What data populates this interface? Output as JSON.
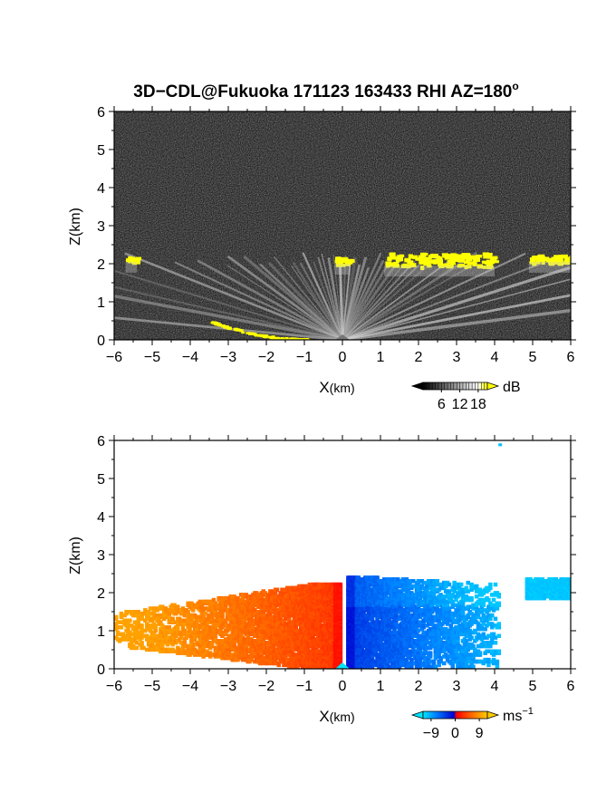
{
  "page_title": "3D−CDL@Fukuoka 171123 163433 RHI AZ=180",
  "title_superscript": "o",
  "chart_data": [
    {
      "type": "heatmap",
      "name": "backscatter-panel",
      "quantity": "dB",
      "xlabel_main": "X",
      "xlabel_unit": "(km)",
      "ylabel": "Z(km)",
      "xlim": [
        -6,
        6
      ],
      "ylim": [
        0,
        6
      ],
      "xticks": [
        -6,
        -5,
        -4,
        -3,
        -2,
        -1,
        0,
        1,
        2,
        3,
        4,
        5,
        6
      ],
      "yticks": [
        0,
        1,
        2,
        3,
        4,
        5,
        6
      ],
      "colorbar": {
        "unit": "dB",
        "tick_labels": [
          "6",
          "12",
          "18"
        ],
        "ticks": [
          6,
          12,
          18
        ],
        "range": [
          0,
          21
        ],
        "colors": [
          "#000000",
          "#ffffff",
          "#ffff00"
        ]
      },
      "features": [
        {
          "kind": "cloud_layer",
          "x_range": [
            1.1,
            4.0
          ],
          "z_range": [
            1.95,
            2.3
          ],
          "level_db": 21
        },
        {
          "kind": "cloud_layer",
          "x_range": [
            4.9,
            6.0
          ],
          "z_range": [
            2.05,
            2.25
          ],
          "level_db": 21
        },
        {
          "kind": "cloud_layer",
          "x_range": [
            -5.7,
            -5.4
          ],
          "z_range": [
            2.05,
            2.2
          ],
          "level_db": 21
        },
        {
          "kind": "cloud_layer",
          "x_range": [
            -0.2,
            0.2
          ],
          "z_range": [
            2.0,
            2.2
          ],
          "level_db": 21
        },
        {
          "kind": "surface_echo",
          "x_range": [
            -3.5,
            -0.9
          ],
          "z_range": [
            0.0,
            0.5
          ],
          "level_db": 21
        },
        {
          "kind": "boundary_layer_rays",
          "x_range": [
            -6,
            6
          ],
          "z_range": [
            0,
            2.0
          ],
          "level_db": 12
        }
      ]
    },
    {
      "type": "heatmap",
      "name": "doppler-velocity-panel",
      "quantity": "radial velocity",
      "xlabel_main": "X",
      "xlabel_unit": "(km)",
      "ylabel": "Z(km)",
      "xlim": [
        -6,
        6
      ],
      "ylim": [
        0,
        6
      ],
      "xticks": [
        -6,
        -5,
        -4,
        -3,
        -2,
        -1,
        0,
        1,
        2,
        3,
        4,
        5,
        6
      ],
      "yticks": [
        0,
        1,
        2,
        3,
        4,
        5,
        6
      ],
      "colorbar": {
        "unit": "ms",
        "unit_exponent": "−1",
        "tick_labels": [
          "−9",
          "0",
          "9"
        ],
        "ticks": [
          -9,
          0,
          9
        ],
        "range": [
          -12,
          12
        ],
        "colors": [
          "#00e5ff",
          "#0080ff",
          "#0000d0",
          "#ff0000",
          "#ff6600",
          "#ffcc00"
        ]
      },
      "features": [
        {
          "kind": "outflow_left",
          "x_range": [
            -6.0,
            -0.1
          ],
          "z_range": [
            0,
            2.2
          ],
          "velocity_ms": [
            2,
            9
          ]
        },
        {
          "kind": "outflow_right",
          "x_range": [
            0.1,
            4.1
          ],
          "z_range": [
            0,
            2.35
          ],
          "velocity_ms": [
            -9,
            -2
          ]
        },
        {
          "kind": "far_right_patch",
          "x_range": [
            4.8,
            6.0
          ],
          "z_range": [
            1.8,
            2.3
          ],
          "velocity_ms": [
            -10,
            -9
          ]
        },
        {
          "kind": "isolated_pixel",
          "x": 4.1,
          "z": 5.85,
          "velocity_ms": -10
        }
      ]
    }
  ]
}
